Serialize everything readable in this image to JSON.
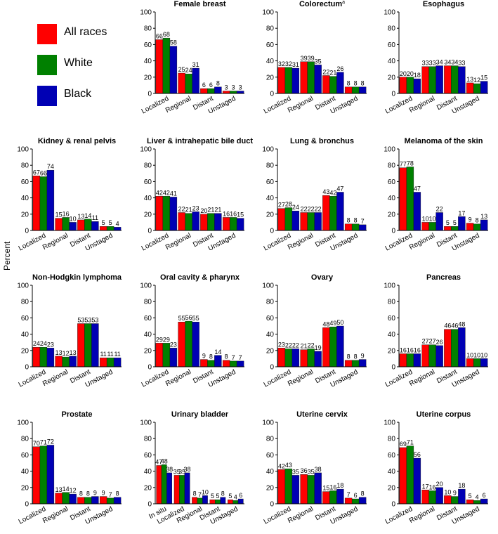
{
  "legend": {
    "items": [
      {
        "label": "All races",
        "color": "#ff0000"
      },
      {
        "label": "White",
        "color": "#008000"
      },
      {
        "label": "Black",
        "color": "#0000b4"
      }
    ]
  },
  "y_axis_label": "Percent",
  "chart_data": [
    {
      "type": "bar",
      "title": "Female breast",
      "categories": [
        "Localized",
        "Regional",
        "Distant",
        "Unstaged"
      ],
      "ylim": [
        0,
        100
      ],
      "yticks": [
        0,
        20,
        40,
        60,
        80,
        100
      ],
      "series": [
        {
          "name": "All races",
          "values": [
            66,
            25,
            6,
            3
          ]
        },
        {
          "name": "White",
          "values": [
            68,
            24,
            6,
            3
          ]
        },
        {
          "name": "Black",
          "values": [
            58,
            31,
            8,
            3
          ]
        }
      ]
    },
    {
      "type": "bar",
      "title": "Colorectum",
      "title_superscript": "a",
      "categories": [
        "Localized",
        "Regional",
        "Distant",
        "Unstaged"
      ],
      "ylim": [
        0,
        100
      ],
      "yticks": [
        0,
        20,
        40,
        60,
        80,
        100
      ],
      "series": [
        {
          "name": "All races",
          "values": [
            32,
            39,
            22,
            8
          ]
        },
        {
          "name": "White",
          "values": [
            32,
            39,
            21,
            8
          ]
        },
        {
          "name": "Black",
          "values": [
            31,
            35,
            26,
            8
          ]
        }
      ]
    },
    {
      "type": "bar",
      "title": "Esophagus",
      "categories": [
        "Localized",
        "Regional",
        "Distant",
        "Unstaged"
      ],
      "ylim": [
        0,
        100
      ],
      "yticks": [
        0,
        20,
        40,
        60,
        80,
        100
      ],
      "series": [
        {
          "name": "All races",
          "values": [
            20,
            33,
            34,
            13
          ]
        },
        {
          "name": "White",
          "values": [
            20,
            33,
            34,
            12
          ]
        },
        {
          "name": "Black",
          "values": [
            18,
            34,
            33,
            15
          ]
        }
      ]
    },
    {
      "type": "bar",
      "title": "Kidney & renal pelvis",
      "categories": [
        "Localized",
        "Regional",
        "Distant",
        "Unstaged"
      ],
      "ylim": [
        0,
        100
      ],
      "yticks": [
        0,
        20,
        40,
        60,
        80,
        100
      ],
      "series": [
        {
          "name": "All races",
          "values": [
            67,
            15,
            13,
            5
          ]
        },
        {
          "name": "White",
          "values": [
            66,
            16,
            14,
            5
          ]
        },
        {
          "name": "Black",
          "values": [
            74,
            10,
            11,
            4
          ]
        }
      ]
    },
    {
      "type": "bar",
      "title": "Liver & intrahepatic bile duct",
      "categories": [
        "Localized",
        "Regional",
        "Distant",
        "Unstaged"
      ],
      "ylim": [
        0,
        100
      ],
      "yticks": [
        0,
        20,
        40,
        60,
        80,
        100
      ],
      "series": [
        {
          "name": "All races",
          "values": [
            42,
            22,
            20,
            16
          ]
        },
        {
          "name": "White",
          "values": [
            42,
            21,
            21,
            16
          ]
        },
        {
          "name": "Black",
          "values": [
            41,
            23,
            21,
            15
          ]
        }
      ]
    },
    {
      "type": "bar",
      "title": "Lung & bronchus",
      "categories": [
        "Localized",
        "Regional",
        "Distant",
        "Unstaged"
      ],
      "ylim": [
        0,
        100
      ],
      "yticks": [
        0,
        20,
        40,
        60,
        80,
        100
      ],
      "series": [
        {
          "name": "All races",
          "values": [
            27,
            22,
            43,
            8
          ]
        },
        {
          "name": "White",
          "values": [
            28,
            22,
            42,
            8
          ]
        },
        {
          "name": "Black",
          "values": [
            24,
            22,
            47,
            7
          ]
        }
      ]
    },
    {
      "type": "bar",
      "title": "Melanoma of the skin",
      "categories": [
        "Localized",
        "Regional",
        "Distant",
        "Unstaged"
      ],
      "ylim": [
        0,
        100
      ],
      "yticks": [
        0,
        20,
        40,
        60,
        80,
        100
      ],
      "series": [
        {
          "name": "All races",
          "values": [
            77,
            10,
            5,
            9
          ]
        },
        {
          "name": "White",
          "values": [
            78,
            10,
            5,
            8
          ]
        },
        {
          "name": "Black",
          "values": [
            47,
            22,
            17,
            13
          ]
        }
      ]
    },
    {
      "type": "bar",
      "title": "Non-Hodgkin lymphoma",
      "categories": [
        "Localized",
        "Regional",
        "Distant",
        "Unstaged"
      ],
      "ylim": [
        0,
        100
      ],
      "yticks": [
        0,
        20,
        40,
        60,
        80,
        100
      ],
      "series": [
        {
          "name": "All races",
          "values": [
            24,
            13,
            53,
            11
          ]
        },
        {
          "name": "White",
          "values": [
            24,
            12,
            53,
            11
          ]
        },
        {
          "name": "Black",
          "values": [
            23,
            13,
            53,
            11
          ]
        }
      ]
    },
    {
      "type": "bar",
      "title": "Oral cavity & pharynx",
      "categories": [
        "Localized",
        "Regional",
        "Distant",
        "Unstaged"
      ],
      "ylim": [
        0,
        100
      ],
      "yticks": [
        0,
        20,
        40,
        60,
        80,
        100
      ],
      "series": [
        {
          "name": "All races",
          "values": [
            29,
            55,
            9,
            8
          ]
        },
        {
          "name": "White",
          "values": [
            29,
            56,
            8,
            7
          ]
        },
        {
          "name": "Black",
          "values": [
            23,
            55,
            14,
            7
          ]
        }
      ]
    },
    {
      "type": "bar",
      "title": "Ovary",
      "categories": [
        "Localized",
        "Regional",
        "Distant",
        "Unstaged"
      ],
      "ylim": [
        0,
        100
      ],
      "yticks": [
        0,
        20,
        40,
        60,
        80,
        100
      ],
      "series": [
        {
          "name": "All races",
          "values": [
            23,
            21,
            48,
            8
          ]
        },
        {
          "name": "White",
          "values": [
            22,
            22,
            49,
            8
          ]
        },
        {
          "name": "Black",
          "values": [
            22,
            19,
            50,
            9
          ]
        }
      ]
    },
    {
      "type": "bar",
      "title": "Pancreas",
      "categories": [
        "Localized",
        "Regional",
        "Distant",
        "Unstaged"
      ],
      "ylim": [
        0,
        100
      ],
      "yticks": [
        0,
        20,
        40,
        60,
        80,
        100
      ],
      "series": [
        {
          "name": "All races",
          "values": [
            16,
            27,
            46,
            10
          ]
        },
        {
          "name": "White",
          "values": [
            16,
            27,
            46,
            10
          ]
        },
        {
          "name": "Black",
          "values": [
            16,
            26,
            48,
            10
          ]
        }
      ]
    },
    {
      "type": "bar",
      "title": "Prostate",
      "categories": [
        "Localized",
        "Regional",
        "Distant",
        "Unstaged"
      ],
      "ylim": [
        0,
        100
      ],
      "yticks": [
        0,
        20,
        40,
        60,
        80,
        100
      ],
      "series": [
        {
          "name": "All races",
          "values": [
            70,
            13,
            8,
            9
          ]
        },
        {
          "name": "White",
          "values": [
            71,
            14,
            8,
            7
          ]
        },
        {
          "name": "Black",
          "values": [
            72,
            12,
            9,
            8
          ]
        }
      ]
    },
    {
      "type": "bar",
      "title": "Urinary bladder",
      "categories": [
        "In situ",
        "Localized",
        "Regional",
        "Distant",
        "Unstaged"
      ],
      "ylim": [
        0,
        100
      ],
      "yticks": [
        0,
        20,
        40,
        60,
        80,
        100
      ],
      "series": [
        {
          "name": "All races",
          "values": [
            47,
            35,
            8,
            5,
            5
          ]
        },
        {
          "name": "White",
          "values": [
            48,
            35,
            7,
            5,
            4
          ]
        },
        {
          "name": "Black",
          "values": [
            38,
            38,
            10,
            8,
            6
          ]
        }
      ]
    },
    {
      "type": "bar",
      "title": "Uterine cervix",
      "categories": [
        "Localized",
        "Regional",
        "Distant",
        "Unstaged"
      ],
      "ylim": [
        0,
        100
      ],
      "yticks": [
        0,
        20,
        40,
        60,
        80,
        100
      ],
      "series": [
        {
          "name": "All races",
          "values": [
            42,
            36,
            15,
            7
          ]
        },
        {
          "name": "White",
          "values": [
            43,
            35,
            16,
            6
          ]
        },
        {
          "name": "Black",
          "values": [
            35,
            38,
            18,
            8
          ]
        }
      ]
    },
    {
      "type": "bar",
      "title": "Uterine corpus",
      "categories": [
        "Localized",
        "Regional",
        "Distant",
        "Unstaged"
      ],
      "ylim": [
        0,
        100
      ],
      "yticks": [
        0,
        20,
        40,
        60,
        80,
        100
      ],
      "series": [
        {
          "name": "All races",
          "values": [
            69,
            17,
            10,
            5
          ]
        },
        {
          "name": "White",
          "values": [
            71,
            16,
            9,
            4
          ]
        },
        {
          "name": "Black",
          "values": [
            56,
            20,
            18,
            6
          ]
        }
      ]
    }
  ]
}
